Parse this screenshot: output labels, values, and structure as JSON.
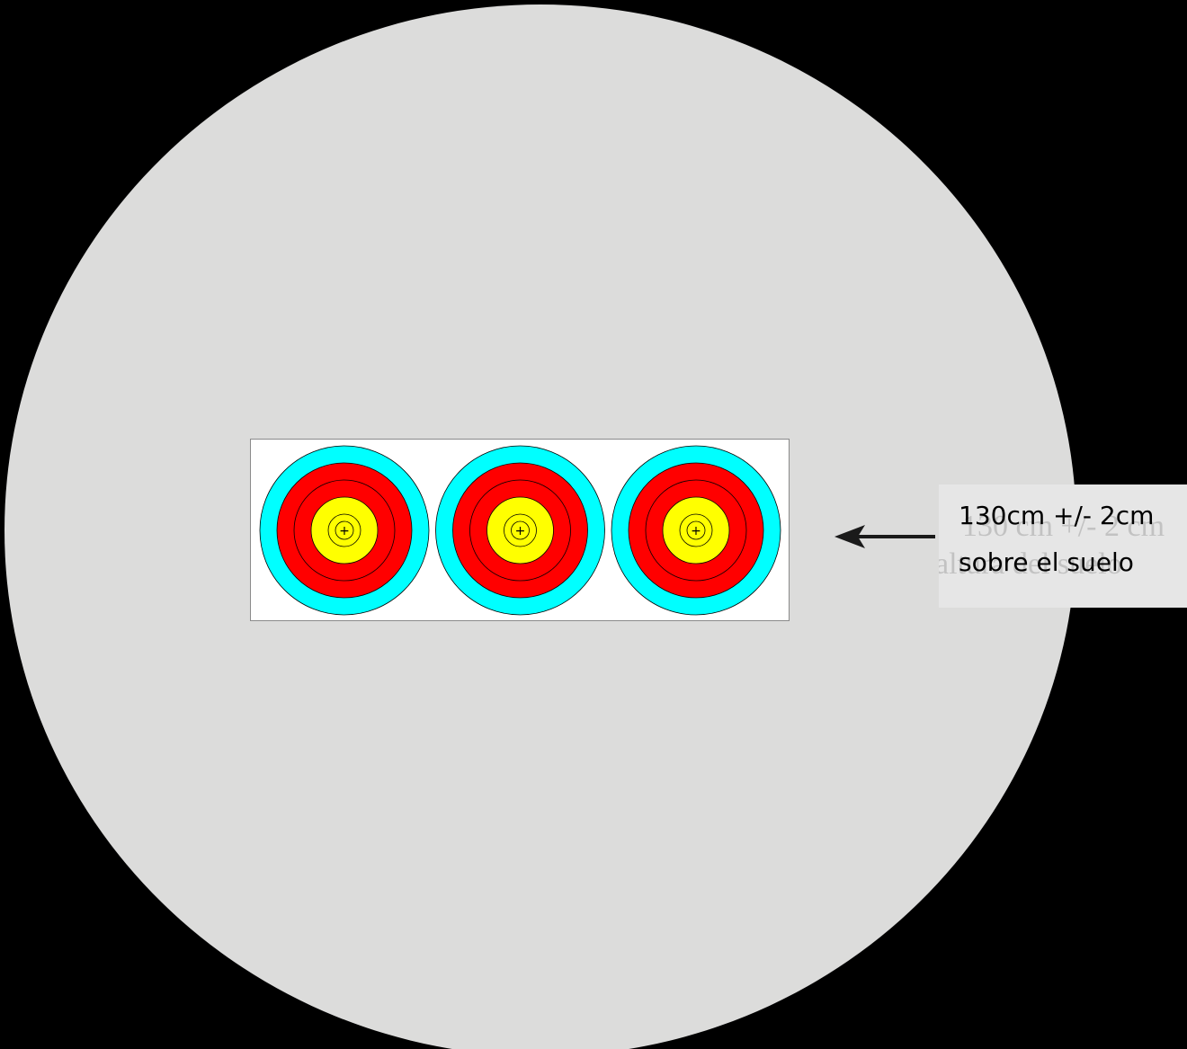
{
  "colors": {
    "background": "#000000",
    "boss": "#dcdcdb",
    "face_sheet": "#ffffff",
    "ring_blue": "#00ffff",
    "ring_red": "#ff0000",
    "ring_gold": "#ffff00",
    "ring_line": "#000000",
    "label_box": "#e6e6e6",
    "arrow": "#1a1a1a"
  },
  "target_face": {
    "count": 3,
    "icon": "archery-target-icon",
    "center_mark": "+"
  },
  "height_label": {
    "line_1": "130cm +/- 2cm",
    "line_2": "sobre el suelo"
  },
  "background_text": {
    "line_1": "130 cm +/- 2 cm",
    "line_2": "altura del suelo"
  },
  "arrow": {
    "icon": "arrow-left-icon"
  }
}
